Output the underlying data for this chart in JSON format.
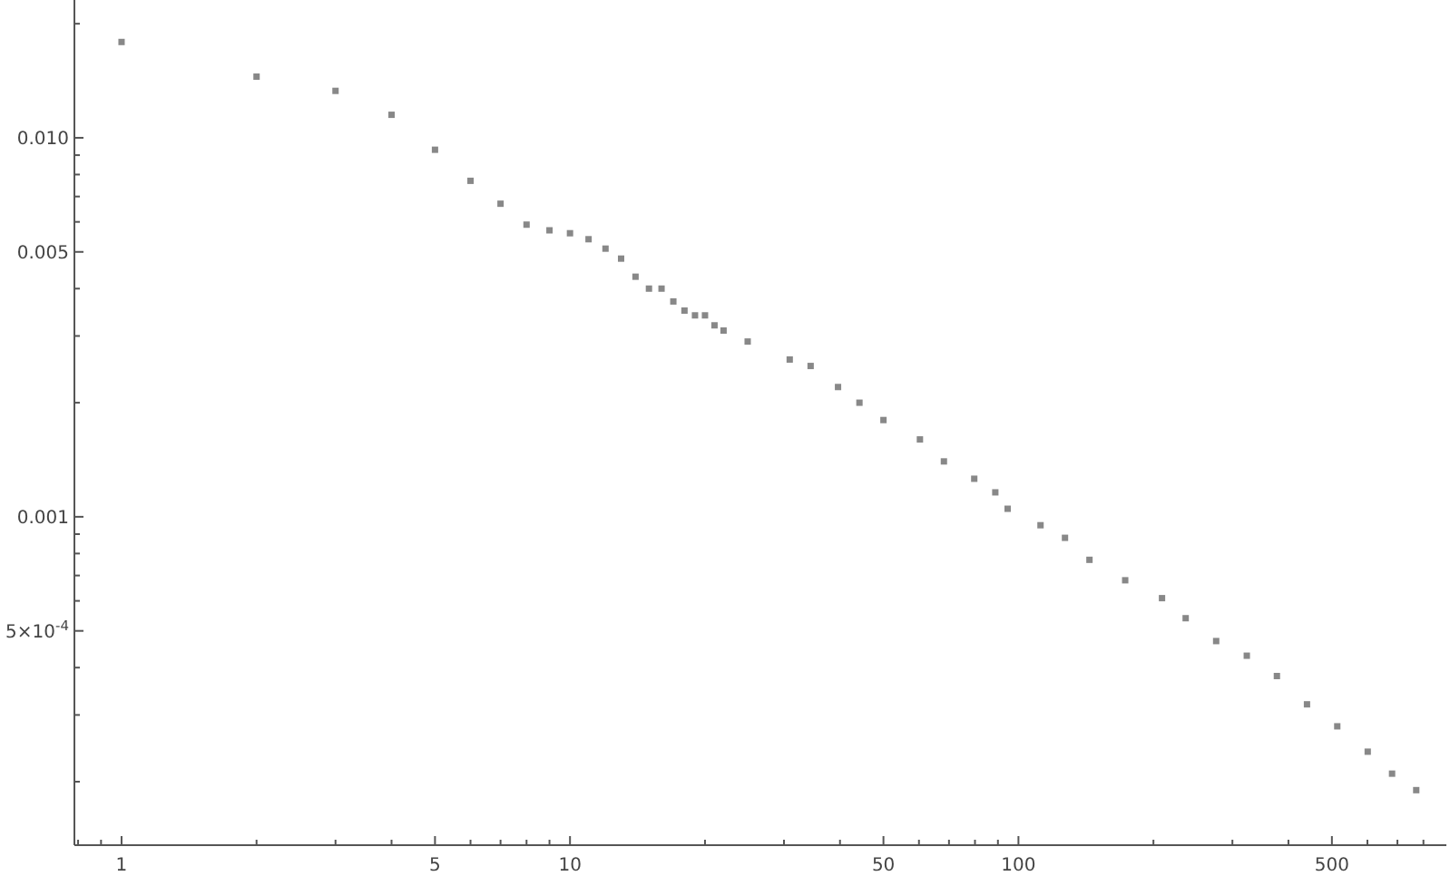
{
  "chart_data": {
    "type": "scatter",
    "log": "xy",
    "marker": "square",
    "grid": false,
    "xlim": [
      0.785,
      900
    ],
    "ylim": [
      0.000136,
      0.0231
    ],
    "xticks": [
      {
        "value": 0.8,
        "label": null
      },
      {
        "value": 0.9,
        "label": null
      },
      1,
      {
        "value": 2,
        "label": null
      },
      {
        "value": 3,
        "label": null
      },
      {
        "value": 4,
        "label": null
      },
      5,
      {
        "value": 6,
        "label": null
      },
      {
        "value": 7,
        "label": null
      },
      {
        "value": 8,
        "label": null
      },
      {
        "value": 9,
        "label": null
      },
      10,
      {
        "value": 20,
        "label": null
      },
      {
        "value": 30,
        "label": null
      },
      {
        "value": 40,
        "label": null
      },
      50,
      {
        "value": 60,
        "label": null
      },
      {
        "value": 70,
        "label": null
      },
      {
        "value": 80,
        "label": null
      },
      {
        "value": 90,
        "label": null
      },
      100,
      {
        "value": 200,
        "label": null
      },
      {
        "value": 300,
        "label": null
      },
      {
        "value": 400,
        "label": null
      },
      500,
      {
        "value": 600,
        "label": null
      },
      {
        "value": 700,
        "label": null
      },
      {
        "value": 800,
        "label": null
      }
    ],
    "yticks": [
      {
        "value": 0.0002,
        "label": null
      },
      {
        "value": 0.0003,
        "label": null
      },
      {
        "value": 0.0004,
        "label": null
      },
      {
        "value": 0.0005,
        "label": "5×10$^{-4}$"
      },
      {
        "value": 0.0006,
        "label": null
      },
      {
        "value": 0.0007,
        "label": null
      },
      {
        "value": 0.0008,
        "label": null
      },
      {
        "value": 0.0009,
        "label": null
      },
      0.001,
      {
        "value": 0.002,
        "label": null
      },
      {
        "value": 0.003,
        "label": null
      },
      {
        "value": 0.004,
        "label": null
      },
      {
        "value": 0.005,
        "label": "0.005"
      },
      {
        "value": 0.006,
        "label": null
      },
      {
        "value": 0.007,
        "label": null
      },
      {
        "value": 0.008,
        "label": null
      },
      {
        "value": 0.009,
        "label": null
      },
      {
        "value": 0.01,
        "label": "0.010"
      },
      {
        "value": 0.02,
        "label": null
      }
    ],
    "series": [
      {
        "color": "#888888",
        "x": [
          1,
          2,
          3,
          4,
          5,
          6,
          7,
          8,
          9,
          10,
          11,
          12,
          13,
          14,
          15,
          16,
          17,
          18,
          19,
          20,
          21,
          22,
          24.9,
          30.9,
          34.4,
          39.6,
          44.2,
          50,
          60.3,
          68.2,
          79.7,
          88.8,
          94.6,
          112,
          127,
          144,
          173,
          209,
          236,
          276,
          323,
          377,
          440,
          514,
          601,
          681,
          771
        ],
        "values": [
          0.0179,
          0.0145,
          0.0133,
          0.0115,
          0.0093,
          0.0077,
          0.0067,
          0.0059,
          0.0057,
          0.0056,
          0.0054,
          0.0051,
          0.0048,
          0.0043,
          0.004,
          0.004,
          0.0037,
          0.0035,
          0.0034,
          0.0034,
          0.0032,
          0.0031,
          0.0029,
          0.0026,
          0.0025,
          0.0022,
          0.002,
          0.0018,
          0.0016,
          0.0014,
          0.00126,
          0.00116,
          0.00105,
          0.00095,
          0.00088,
          0.00077,
          0.00068,
          0.00061,
          0.00054,
          0.00047,
          0.00043,
          0.00038,
          0.00032,
          0.00028,
          0.00024,
          0.00021,
          0.00019
        ]
      }
    ]
  }
}
